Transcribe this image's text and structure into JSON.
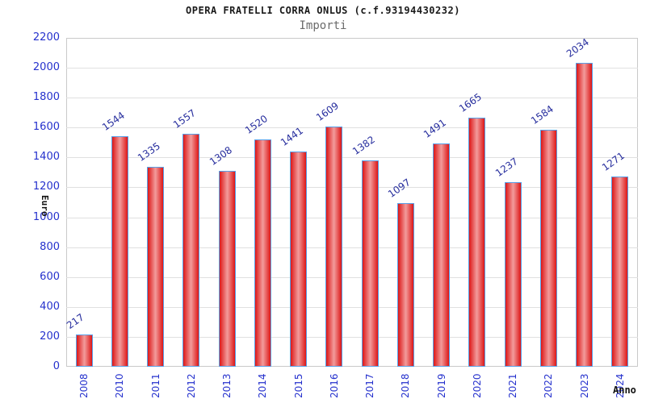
{
  "header": {
    "title": "OPERA FRATELLI CORRA ONLUS (c.f.93194430232)",
    "subtitle": "Importi"
  },
  "chart_data": {
    "type": "bar",
    "title": "OPERA FRATELLI CORRA ONLUS (c.f.93194430232)",
    "subtitle": "Importi",
    "xlabel": "Anno",
    "ylabel": "Euro",
    "categories": [
      "2008",
      "2010",
      "2011",
      "2012",
      "2013",
      "2014",
      "2015",
      "2016",
      "2017",
      "2018",
      "2019",
      "2020",
      "2021",
      "2022",
      "2023",
      "2024"
    ],
    "values": [
      217,
      1544,
      1335,
      1557,
      1308,
      1520,
      1441,
      1609,
      1382,
      1097,
      1491,
      1665,
      1237,
      1584,
      2034,
      1271
    ],
    "ylim": [
      0,
      2200
    ],
    "ytick_step": 200,
    "legend": "none",
    "grid": "horizontal gridlines every 200 with alternating white/gray bands",
    "value_labels": "above each bar, rotated diagonally",
    "x_tick_rotation": -90,
    "colors": {
      "bar_edge_fill": "#dd1717",
      "bar_center_fill": "#f29c9c",
      "bar_border": "#58a0e8",
      "axis_tick_label": "#2531cd",
      "value_label": "#272e9e",
      "band_gray": "#f2f2f2",
      "grid_line": "#e0e0e0",
      "plot_border": "#c9c9c9",
      "title_color": "#1a1a1a",
      "subtitle_color": "#6b6b6b",
      "axis_title_color": "#111111",
      "background": "#ffffff"
    }
  }
}
